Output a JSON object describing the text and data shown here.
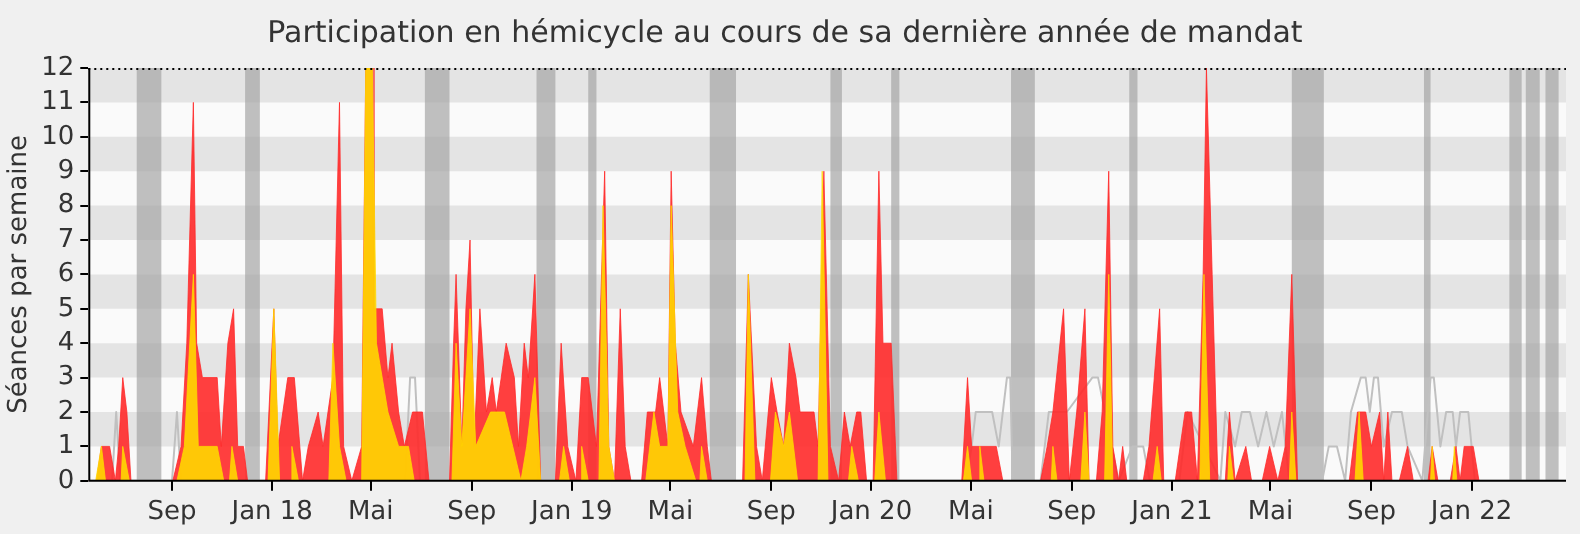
{
  "chart_data": {
    "type": "area",
    "title": "Participation en hémicycle au cours de sa dernière année de mandat",
    "ylabel": "Séances par semaine",
    "xlim": [
      "2017-05-22",
      "2022-04-26"
    ],
    "xticks": [
      {
        "value": "2017-09-01",
        "label": "Sep"
      },
      {
        "value": "2018-01-01",
        "label": "Jan 18"
      },
      {
        "value": "2018-05-01",
        "label": "Mai"
      },
      {
        "value": "2018-09-01",
        "label": "Sep"
      },
      {
        "value": "2019-01-01",
        "label": "Jan 19"
      },
      {
        "value": "2019-05-01",
        "label": "Mai"
      },
      {
        "value": "2019-09-01",
        "label": "Sep"
      },
      {
        "value": "2020-01-01",
        "label": "Jan 20"
      },
      {
        "value": "2020-05-01",
        "label": "Mai"
      },
      {
        "value": "2020-09-01",
        "label": "Sep"
      },
      {
        "value": "2021-01-01",
        "label": "Jan 21"
      },
      {
        "value": "2021-05-01",
        "label": "Mai"
      },
      {
        "value": "2021-09-01",
        "label": "Sep"
      },
      {
        "value": "2022-01-01",
        "label": "Jan 22"
      }
    ],
    "ylim": [
      0,
      12
    ],
    "yticks": [
      0,
      1,
      2,
      3,
      4,
      5,
      6,
      7,
      8,
      9,
      10,
      11,
      12
    ],
    "legend": false,
    "bands": [
      {
        "axis": "x",
        "from": "2017-07-20",
        "to": "2017-08-19",
        "color": "#a0a0a0"
      },
      {
        "axis": "x",
        "from": "2017-11-29",
        "to": "2017-12-17",
        "color": "#a0a0a0"
      },
      {
        "axis": "x",
        "from": "2018-07-06",
        "to": "2018-08-05",
        "color": "#a0a0a0"
      },
      {
        "axis": "x",
        "from": "2018-11-19",
        "to": "2018-12-12",
        "color": "#a0a0a0"
      },
      {
        "axis": "x",
        "from": "2019-01-21",
        "to": "2019-01-31",
        "color": "#a0a0a0"
      },
      {
        "axis": "x",
        "from": "2019-06-18",
        "to": "2019-07-20",
        "color": "#a0a0a0"
      },
      {
        "axis": "x",
        "from": "2019-11-12",
        "to": "2019-11-26",
        "color": "#a0a0a0"
      },
      {
        "axis": "x",
        "from": "2020-01-25",
        "to": "2020-02-04",
        "color": "#a0a0a0"
      },
      {
        "axis": "x",
        "from": "2020-06-19",
        "to": "2020-07-18",
        "color": "#a0a0a0"
      },
      {
        "axis": "x",
        "from": "2020-11-10",
        "to": "2020-11-20",
        "color": "#a0a0a0"
      },
      {
        "axis": "x",
        "from": "2021-05-27",
        "to": "2021-07-05",
        "color": "#a0a0a0"
      },
      {
        "axis": "x",
        "from": "2021-11-04",
        "to": "2021-11-12",
        "color": "#a0a0a0"
      },
      {
        "axis": "x",
        "from": "2022-02-16",
        "to": "2022-03-03",
        "color": "#a0a0a0"
      },
      {
        "axis": "x",
        "from": "2022-03-08",
        "to": "2022-03-25",
        "color": "#a0a0a0"
      },
      {
        "axis": "x",
        "from": "2022-04-01",
        "to": "2022-04-17",
        "color": "#a0a0a0"
      }
    ],
    "series": [
      {
        "type": "line",
        "color": "#c0c0c0",
        "x": [
          "2017-05-22",
          "2017-06-20",
          "2017-06-25",
          "2017-06-30",
          "2017-09-01",
          "2017-09-07",
          "2017-09-12",
          "2018-06-12",
          "2018-06-18",
          "2018-06-24",
          "2018-06-30",
          "2020-04-25",
          "2020-05-02",
          "2020-05-07",
          "2020-05-27",
          "2020-06-04",
          "2020-06-14",
          "2020-06-18",
          "2020-06-21",
          "2020-07-25",
          "2020-08-04",
          "2020-08-14",
          "2020-08-26",
          "2020-09-26",
          "2020-10-03",
          "2020-10-28",
          "2020-11-14",
          "2020-11-27",
          "2020-12-05",
          "2021-01-10",
          "2021-01-20",
          "2021-03-01",
          "2021-03-07",
          "2021-03-19",
          "2021-03-27",
          "2021-04-06",
          "2021-04-16",
          "2021-04-26",
          "2021-05-05",
          "2021-05-15",
          "2021-05-24",
          "2021-07-03",
          "2021-07-11",
          "2021-07-21",
          "2021-07-31",
          "2021-08-07",
          "2021-08-19",
          "2021-08-25",
          "2021-08-30",
          "2021-09-04",
          "2021-09-09",
          "2021-09-16",
          "2021-09-26",
          "2021-10-08",
          "2021-10-15",
          "2021-11-02",
          "2021-11-12",
          "2021-11-16",
          "2021-11-24",
          "2021-12-01",
          "2021-12-09",
          "2021-12-13",
          "2021-12-18",
          "2021-12-28",
          "2022-01-05",
          "2022-04-26"
        ],
        "values": [
          0,
          0,
          2,
          0,
          0,
          2,
          0,
          0,
          3,
          3,
          0,
          0,
          1,
          2,
          2,
          1,
          3,
          3,
          0,
          0,
          2,
          null,
          2,
          3,
          3,
          0,
          1,
          1,
          0,
          0,
          2,
          0,
          2,
          1,
          2,
          2,
          1,
          2,
          1,
          2,
          0,
          0,
          1,
          1,
          0,
          2,
          3,
          3,
          2,
          3,
          3,
          1,
          2,
          2,
          1,
          0,
          3,
          3,
          1,
          2,
          2,
          1,
          2,
          2,
          0,
          0
        ]
      },
      {
        "color": "#ff2a2a",
        "x": [
          "2017-05-22",
          "2017-06-01",
          "2017-06-07",
          "2017-06-17",
          "2017-06-24",
          "2017-06-28",
          "2017-07-03",
          "2017-07-08",
          "2017-07-13",
          "2017-09-02",
          "2017-09-12",
          "2017-09-19",
          "2017-09-27",
          "2017-10-01",
          "2017-10-08",
          "2017-10-26",
          "2017-10-31",
          "2017-11-08",
          "2017-11-15",
          "2017-11-20",
          "2017-11-27",
          "2017-12-02",
          "2017-12-24",
          "2018-01-03",
          "2018-01-08",
          "2018-01-20",
          "2018-01-28",
          "2018-02-07",
          "2018-02-14",
          "2018-02-26",
          "2018-03-04",
          "2018-03-16",
          "2018-03-24",
          "2018-03-29",
          "2018-04-08",
          "2018-04-20",
          "2018-04-25",
          "2018-05-03",
          "2018-05-05",
          "2018-05-15",
          "2018-05-22",
          "2018-05-27",
          "2018-06-04",
          "2018-06-11",
          "2018-06-21",
          "2018-07-03",
          "2018-07-11",
          "2018-08-05",
          "2018-08-10",
          "2018-08-13",
          "2018-08-20",
          "2018-08-25",
          "2018-08-30",
          "2018-09-04",
          "2018-09-11",
          "2018-09-19",
          "2018-09-26",
          "2018-10-01",
          "2018-10-13",
          "2018-10-23",
          "2018-10-28",
          "2018-11-04",
          "2018-11-09",
          "2018-11-17",
          "2018-11-24",
          "2018-12-12",
          "2018-12-19",
          "2018-12-27",
          "2019-01-06",
          "2019-01-13",
          "2019-01-21",
          "2019-01-31",
          "2019-02-10",
          "2019-02-15",
          "2019-02-22",
          "2019-03-01",
          "2019-03-07",
          "2019-03-14",
          "2019-03-27",
          "2019-04-03",
          "2019-04-13",
          "2019-04-18",
          "2019-04-28",
          "2019-05-02",
          "2019-05-07",
          "2019-05-14",
          "2019-05-29",
          "2019-06-08",
          "2019-06-15",
          "2019-06-20",
          "2019-07-28",
          "2019-08-04",
          "2019-08-14",
          "2019-08-21",
          "2019-09-01",
          "2019-09-08",
          "2019-09-16",
          "2019-09-23",
          "2019-10-01",
          "2019-10-06",
          "2019-10-23",
          "2019-10-28",
          "2019-11-04",
          "2019-11-12",
          "2019-11-22",
          "2019-11-29",
          "2019-12-06",
          "2019-12-14",
          "2019-12-19",
          "2019-12-26",
          "2020-01-03",
          "2020-01-10",
          "2020-01-15",
          "2020-01-25",
          "2020-02-01",
          "2020-04-20",
          "2020-04-27",
          "2020-05-02",
          "2020-06-01",
          "2020-06-09",
          "2020-07-25",
          "2020-08-02",
          "2020-08-09",
          "2020-08-22",
          "2020-08-29",
          "2020-09-07",
          "2020-09-17",
          "2020-09-22",
          "2020-10-01",
          "2020-10-08",
          "2020-10-16",
          "2020-10-21",
          "2020-10-28",
          "2020-11-02",
          "2020-11-07",
          "2020-11-27",
          "2020-12-04",
          "2020-12-17",
          "2020-12-22",
          "2021-01-05",
          "2021-01-17",
          "2021-01-25",
          "2021-02-01",
          "2021-02-08",
          "2021-02-12",
          "2021-02-19",
          "2021-02-26",
          "2021-03-07",
          "2021-03-12",
          "2021-03-19",
          "2021-04-01",
          "2021-04-08",
          "2021-04-21",
          "2021-04-30",
          "2021-05-10",
          "2021-05-19",
          "2021-05-27",
          "2021-06-03",
          "2021-08-05",
          "2021-08-15",
          "2021-08-25",
          "2021-09-01",
          "2021-09-11",
          "2021-09-16",
          "2021-09-21",
          "2021-09-26",
          "2021-10-05",
          "2021-10-15",
          "2021-10-22",
          "2021-11-09",
          "2021-11-14",
          "2021-11-21",
          "2021-12-06",
          "2021-12-13",
          "2021-12-18",
          "2021-12-23",
          "2022-01-03",
          "2022-01-10",
          "2022-04-26"
        ],
        "values": [
          0,
          0,
          1,
          1,
          0,
          1,
          3,
          2,
          0,
          0,
          1,
          4,
          11,
          4,
          3,
          3,
          1,
          4,
          5,
          1,
          1,
          0,
          0,
          5,
          1,
          3,
          3,
          0,
          1,
          2,
          1,
          3,
          11,
          1,
          0,
          1,
          12,
          12,
          5,
          5,
          3,
          4,
          2,
          1,
          2,
          2,
          0,
          0,
          4,
          6,
          1,
          5,
          7,
          1,
          5,
          2,
          3,
          2,
          4,
          3,
          1,
          4,
          3,
          6,
          0,
          0,
          4,
          1,
          0,
          3,
          3,
          1,
          9,
          1,
          0,
          5,
          1,
          0,
          0,
          2,
          2,
          3,
          1,
          9,
          4,
          2,
          1,
          3,
          1,
          0,
          0,
          6,
          1,
          0,
          3,
          2,
          1,
          4,
          3,
          2,
          2,
          1,
          9,
          1,
          0,
          2,
          1,
          2,
          2,
          0,
          0,
          9,
          4,
          4,
          0,
          0,
          3,
          1,
          1,
          0,
          0,
          1,
          2,
          5,
          0,
          2,
          5,
          0,
          0,
          2,
          9,
          1,
          0,
          1,
          0,
          0,
          1,
          5,
          0,
          0,
          2,
          2,
          0,
          6,
          12,
          6,
          0,
          0,
          2,
          0,
          1,
          0,
          0,
          1,
          0,
          1,
          6,
          0,
          0,
          2,
          2,
          1,
          2,
          0,
          2,
          0,
          0,
          1,
          0,
          0,
          1,
          0,
          0,
          1,
          0,
          1,
          1,
          0,
          0
        ]
      },
      {
        "color": "#ffd700",
        "x": [
          "2017-05-31",
          "2017-06-07",
          "2017-06-12",
          "2017-07-01",
          "2017-07-03",
          "2017-07-11",
          "2017-09-07",
          "2017-09-16",
          "2017-09-27",
          "2017-10-03",
          "2017-10-26",
          "2017-11-03",
          "2017-11-10",
          "2017-11-13",
          "2017-11-20",
          "2017-12-27",
          "2018-01-03",
          "2018-01-10",
          "2018-01-23",
          "2018-01-25",
          "2018-02-02",
          "2018-03-11",
          "2018-03-16",
          "2018-03-24",
          "2018-04-01",
          "2018-04-20",
          "2018-04-25",
          "2018-05-03",
          "2018-05-08",
          "2018-05-22",
          "2018-06-04",
          "2018-06-16",
          "2018-06-23",
          "2018-08-08",
          "2018-08-13",
          "2018-08-20",
          "2018-08-30",
          "2018-09-06",
          "2018-09-24",
          "2018-10-11",
          "2018-10-21",
          "2018-10-31",
          "2018-11-07",
          "2018-11-17",
          "2018-11-24",
          "2018-12-17",
          "2018-12-22",
          "2018-12-29",
          "2019-01-11",
          "2019-01-13",
          "2019-01-21",
          "2019-02-03",
          "2019-02-08",
          "2019-02-15",
          "2019-02-22",
          "2019-04-01",
          "2019-04-11",
          "2019-04-18",
          "2019-04-28",
          "2019-05-02",
          "2019-05-10",
          "2019-05-19",
          "2019-06-01",
          "2019-06-06",
          "2019-06-08",
          "2019-06-15",
          "2019-07-31",
          "2019-08-04",
          "2019-08-12",
          "2019-08-31",
          "2019-09-06",
          "2019-09-16",
          "2019-09-23",
          "2019-10-03",
          "2019-10-28",
          "2019-11-02",
          "2019-11-09",
          "2019-12-04",
          "2019-12-08",
          "2019-12-16",
          "2020-01-05",
          "2020-01-10",
          "2020-01-18",
          "2020-04-22",
          "2020-04-27",
          "2020-05-02",
          "2020-05-10",
          "2020-05-12",
          "2020-05-17",
          "2020-08-07",
          "2020-08-09",
          "2020-08-14",
          "2020-09-12",
          "2020-09-17",
          "2020-09-22",
          "2020-10-11",
          "2020-10-16",
          "2020-10-21",
          "2020-12-09",
          "2020-12-14",
          "2020-12-19",
          "2021-02-04",
          "2021-02-09",
          "2021-02-16",
          "2021-03-10",
          "2021-03-12",
          "2021-03-17",
          "2021-05-24",
          "2021-05-27",
          "2021-06-01",
          "2021-08-12",
          "2021-08-17",
          "2021-08-22",
          "2021-11-12",
          "2021-11-14",
          "2021-11-17",
          "2021-12-09",
          "2021-12-11",
          "2021-12-14"
        ],
        "values": [
          0,
          1,
          0,
          0,
          1,
          0,
          0,
          1,
          6,
          1,
          1,
          0,
          0,
          1,
          0,
          0,
          5,
          0,
          0,
          1,
          0,
          0,
          4,
          1,
          0,
          0,
          12,
          12,
          4,
          2,
          1,
          1,
          0,
          0,
          4,
          1,
          5,
          1,
          2,
          2,
          1,
          0,
          1,
          3,
          0,
          0,
          1,
          0,
          0,
          1,
          0,
          0,
          8,
          1,
          0,
          0,
          2,
          1,
          1,
          8,
          2,
          1,
          0,
          0,
          1,
          0,
          0,
          6,
          0,
          0,
          2,
          1,
          2,
          0,
          0,
          9,
          0,
          0,
          1,
          0,
          0,
          2,
          0,
          0,
          1,
          0,
          0,
          1,
          0,
          0,
          1,
          0,
          0,
          2,
          0,
          0,
          6,
          0,
          0,
          1,
          0,
          0,
          6,
          0,
          0,
          1,
          0,
          0,
          2,
          0,
          0,
          2,
          0,
          0,
          1,
          0,
          0,
          1,
          0
        ]
      }
    ]
  }
}
